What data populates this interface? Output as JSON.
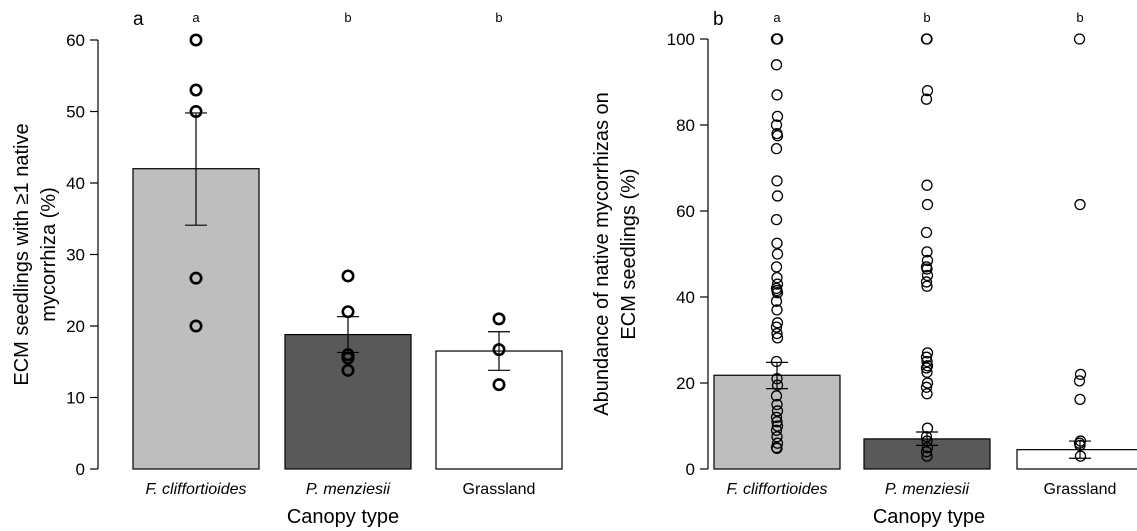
{
  "chart_data": [
    {
      "type": "bar",
      "panel_label": "a",
      "categories": [
        "F. cliffortioides",
        "P. menziesii",
        "Grassland"
      ],
      "category_italic": [
        true,
        true,
        false
      ],
      "values": [
        42,
        18.8,
        16.5
      ],
      "error_bars": [
        [
          34.1,
          49.8
        ],
        [
          16.3,
          21.3
        ],
        [
          13.8,
          19.2
        ]
      ],
      "points": [
        [
          60,
          53,
          50,
          26.7,
          20
        ],
        [
          27,
          22,
          16,
          15.5,
          13.8
        ],
        [
          21,
          16.7,
          11.8
        ]
      ],
      "significance_letters": [
        "a",
        "b",
        "b"
      ],
      "bar_colors": [
        "#bebebe",
        "#595959",
        "#ffffff"
      ],
      "xlabel": "Canopy type",
      "ylabel_lines": [
        "ECM seedlings with ≥1 native",
        "mycorrhiza (%)"
      ],
      "ylim": [
        0,
        60
      ],
      "yticks": [
        0,
        10,
        20,
        30,
        40,
        50,
        60
      ],
      "grid": false
    },
    {
      "type": "bar",
      "panel_label": "b",
      "categories": [
        "F. cliffortioides",
        "P. menziesii",
        "Grassland"
      ],
      "category_italic": [
        true,
        true,
        false
      ],
      "values": [
        21.8,
        7,
        4.5
      ],
      "error_bars": [
        [
          18.7,
          24.8
        ],
        [
          5.5,
          8.6
        ],
        [
          2.5,
          6.5
        ]
      ],
      "points": [
        [
          100,
          100,
          100,
          94,
          87,
          82,
          80,
          78,
          77.5,
          74.5,
          67,
          63.5,
          58,
          52.5,
          50,
          47,
          44.5,
          43,
          42,
          41.5,
          41,
          39,
          37,
          34,
          33,
          31.5,
          30.5,
          25,
          21,
          19.5,
          17,
          15,
          13.5,
          12,
          11,
          10,
          9,
          7.5,
          6,
          5,
          4.8
        ],
        [
          100,
          100,
          88,
          86,
          66,
          61.5,
          55,
          50.5,
          48.5,
          47,
          46.5,
          45,
          43.5,
          42.5,
          27,
          26,
          25,
          24,
          23.5,
          22.5,
          20,
          19,
          17.5,
          9.5,
          7.5,
          6.5,
          5,
          4,
          3
        ],
        [
          100,
          61.5,
          22,
          20.5,
          16.2,
          6.5,
          6,
          5.5,
          3
        ]
      ],
      "significance_letters": [
        "a",
        "b",
        "b"
      ],
      "bar_colors": [
        "#bebebe",
        "#595959",
        "#ffffff"
      ],
      "xlabel": "Canopy type",
      "ylabel_lines": [
        "Abundance of native mycorrhizas on",
        "ECM seedlings (%)"
      ],
      "ylim": [
        0,
        100
      ],
      "yticks": [
        0,
        20,
        40,
        60,
        80,
        100
      ],
      "grid": false
    }
  ]
}
